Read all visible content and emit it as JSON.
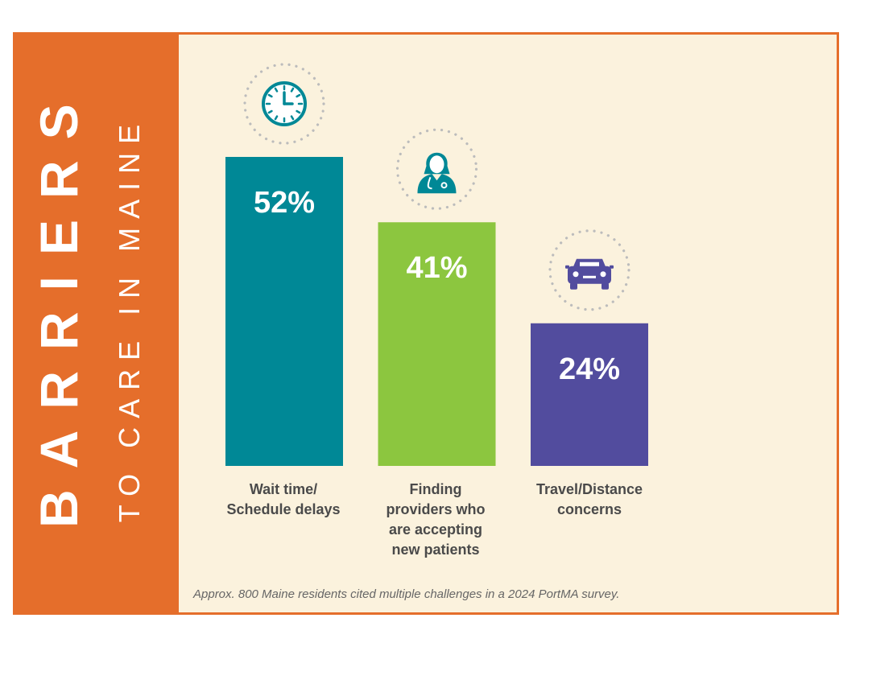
{
  "banner": {
    "title": "BARRIERS",
    "subtitle": "TO CARE IN MAINE",
    "color": "#E56E2B"
  },
  "footnote": "Approx. 800 Maine residents cited multiple challenges in a 2024 PortMA survey.",
  "chart_data": {
    "type": "bar",
    "title": "BARRIERS TO CARE IN MAINE",
    "categories": [
      "Wait time/ Schedule delays",
      "Finding providers who are accepting new patients",
      "Travel/Distance concerns"
    ],
    "category_lines": [
      [
        "Wait time/",
        "Schedule delays"
      ],
      [
        "Finding",
        "providers who",
        "are accepting",
        "new patients"
      ],
      [
        "Travel/Distance",
        "concerns"
      ]
    ],
    "values": [
      52,
      41,
      24
    ],
    "value_labels": [
      "52%",
      "41%",
      "24%"
    ],
    "unit": "%",
    "colors": [
      "#008896",
      "#8CC63F",
      "#524C9E"
    ],
    "icons": [
      "clock-icon",
      "doctor-icon",
      "car-icon"
    ],
    "xlabel": "",
    "ylabel": "",
    "ylim": [
      0,
      52
    ],
    "grid": false,
    "legend": "none"
  }
}
